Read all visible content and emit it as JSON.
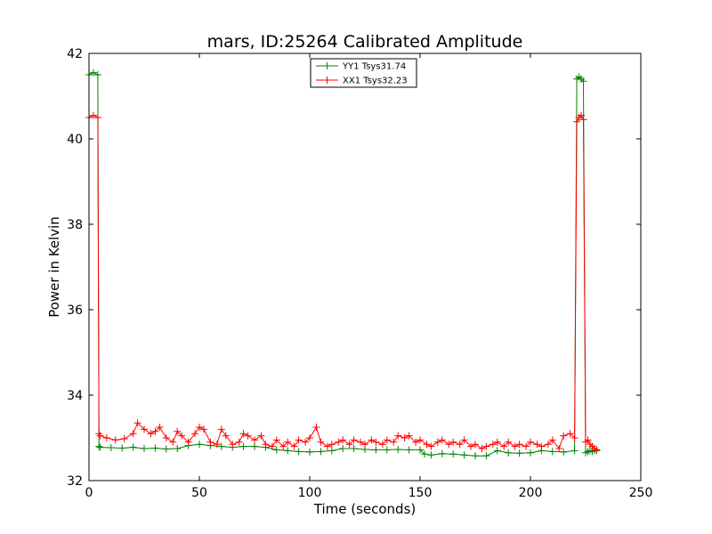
{
  "chart_data": {
    "type": "line",
    "title": "mars, ID:25264 Calibrated Amplitude",
    "xlabel": "Time (seconds)",
    "ylabel": "Power in Kelvin",
    "xlim": [
      0,
      250
    ],
    "ylim": [
      32,
      42
    ],
    "xticks": [
      "0",
      "50",
      "100",
      "150",
      "200",
      "250"
    ],
    "yticks": [
      "32",
      "34",
      "36",
      "38",
      "40",
      "42"
    ],
    "grid": false,
    "legend_position": "top-center",
    "marker": "+",
    "series": [
      {
        "name": "YY1 Tsys31.74",
        "color": "#008000",
        "x": [
          0,
          2,
          4,
          4.5,
          5,
          10,
          15,
          20,
          25,
          30,
          35,
          40,
          45,
          50,
          55,
          60,
          65,
          70,
          75,
          80,
          85,
          90,
          95,
          100,
          105,
          110,
          115,
          120,
          125,
          130,
          135,
          140,
          145,
          150,
          152,
          155,
          160,
          165,
          170,
          175,
          180,
          185,
          190,
          195,
          200,
          205,
          210,
          215,
          220,
          221,
          222,
          223,
          224,
          225,
          226,
          227,
          228,
          229,
          230
        ],
        "y": [
          41.5,
          41.55,
          41.5,
          32.8,
          32.78,
          32.77,
          32.76,
          32.78,
          32.75,
          32.76,
          32.74,
          32.75,
          32.82,
          32.85,
          32.82,
          32.8,
          32.78,
          32.8,
          32.8,
          32.78,
          32.72,
          32.7,
          32.68,
          32.67,
          32.68,
          32.7,
          32.75,
          32.75,
          32.73,
          32.72,
          32.72,
          32.73,
          32.72,
          32.72,
          32.62,
          32.6,
          32.63,
          32.62,
          32.6,
          32.58,
          32.58,
          32.7,
          32.65,
          32.64,
          32.65,
          32.7,
          32.68,
          32.67,
          32.7,
          41.4,
          41.45,
          41.4,
          41.35,
          32.65,
          32.68,
          32.7,
          32.68,
          32.7,
          32.7
        ]
      },
      {
        "name": "XX1 Tsys32.23",
        "color": "#ff0000",
        "x": [
          0,
          2,
          4,
          4.5,
          5,
          8,
          12,
          16,
          20,
          22,
          25,
          28,
          30,
          32,
          35,
          38,
          40,
          42,
          45,
          48,
          50,
          52,
          55,
          58,
          60,
          62,
          65,
          68,
          70,
          72,
          75,
          78,
          80,
          83,
          85,
          88,
          90,
          93,
          95,
          98,
          100,
          103,
          105,
          108,
          110,
          113,
          115,
          118,
          120,
          123,
          125,
          128,
          130,
          133,
          135,
          138,
          140,
          143,
          145,
          148,
          150,
          153,
          155,
          158,
          160,
          163,
          165,
          168,
          170,
          173,
          175,
          178,
          180,
          183,
          185,
          188,
          190,
          193,
          195,
          198,
          200,
          203,
          205,
          208,
          210,
          213,
          215,
          218,
          220,
          221,
          222,
          223,
          224,
          225,
          226,
          227,
          228,
          229,
          230
        ],
        "y": [
          40.5,
          40.55,
          40.5,
          33.1,
          33.05,
          33.0,
          32.95,
          32.98,
          33.1,
          33.35,
          33.2,
          33.1,
          33.15,
          33.25,
          33.0,
          32.9,
          33.15,
          33.05,
          32.9,
          33.1,
          33.25,
          33.2,
          32.9,
          32.85,
          33.2,
          33.05,
          32.85,
          32.9,
          33.1,
          33.05,
          32.95,
          33.05,
          32.85,
          32.8,
          32.95,
          32.8,
          32.9,
          32.8,
          32.95,
          32.9,
          33.0,
          33.25,
          32.9,
          32.8,
          32.85,
          32.9,
          32.95,
          32.85,
          32.95,
          32.9,
          32.85,
          32.95,
          32.9,
          32.85,
          32.95,
          32.9,
          33.05,
          33.0,
          33.05,
          32.9,
          32.95,
          32.85,
          32.8,
          32.9,
          32.95,
          32.85,
          32.9,
          32.85,
          32.95,
          32.8,
          32.85,
          32.75,
          32.8,
          32.85,
          32.9,
          32.8,
          32.9,
          32.8,
          32.85,
          32.8,
          32.9,
          32.85,
          32.8,
          32.85,
          32.95,
          32.75,
          33.05,
          33.1,
          33.0,
          40.4,
          40.5,
          40.55,
          40.45,
          32.9,
          32.95,
          32.85,
          32.8,
          32.75,
          32.72
        ]
      }
    ]
  }
}
